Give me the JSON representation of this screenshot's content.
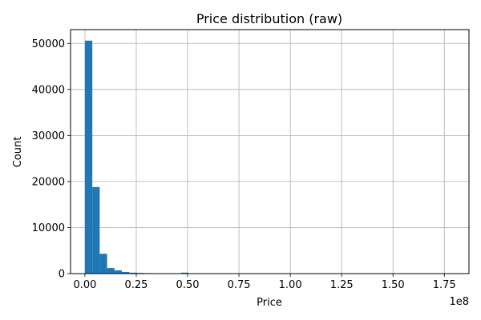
{
  "chart_data": {
    "type": "bar",
    "title": "Price distribution (raw)",
    "xlabel": "Price",
    "ylabel": "Count",
    "x_offset_text": "1e8",
    "x_scale_factor": 100000000,
    "xlim": [
      -7000000,
      187000000
    ],
    "ylim": [
      0,
      53000
    ],
    "grid": true,
    "bar_color": "#1f77b4",
    "x_ticks": [
      0,
      25000000,
      50000000,
      75000000,
      100000000,
      125000000,
      150000000,
      175000000
    ],
    "x_tick_labels": [
      "0.00",
      "0.25",
      "0.50",
      "0.75",
      "1.00",
      "1.25",
      "1.50",
      "1.75"
    ],
    "y_ticks": [
      0,
      10000,
      20000,
      30000,
      40000,
      50000
    ],
    "y_tick_labels": [
      "0",
      "10000",
      "20000",
      "30000",
      "40000",
      "50000"
    ],
    "bin_edges": [
      0,
      3600000,
      7200000,
      10800000,
      14400000,
      18000000,
      21600000,
      25200000,
      28800000,
      32400000,
      36000000,
      39600000,
      43200000,
      46800000,
      50400000,
      54000000,
      57600000,
      61200000,
      64800000,
      68400000,
      72000000,
      75600000,
      79200000,
      82800000,
      86400000,
      90000000,
      93600000,
      97200000,
      100800000,
      104400000,
      108000000,
      111600000,
      115200000,
      118800000,
      122400000,
      126000000,
      129600000,
      133200000,
      136800000,
      140400000,
      144000000,
      147600000,
      151200000,
      154800000,
      158400000,
      162000000,
      165600000,
      169200000,
      172800000,
      176400000,
      180000000
    ],
    "counts": [
      50600,
      18800,
      4300,
      1200,
      700,
      350,
      200,
      150,
      100,
      80,
      60,
      30,
      30,
      200,
      40,
      20,
      10,
      10,
      5,
      5,
      5,
      0,
      0,
      0,
      0,
      0,
      0,
      0,
      0,
      0,
      0,
      0,
      0,
      0,
      0,
      0,
      0,
      0,
      0,
      0,
      0,
      0,
      0,
      0,
      0,
      0,
      0,
      0,
      0,
      5
    ]
  }
}
